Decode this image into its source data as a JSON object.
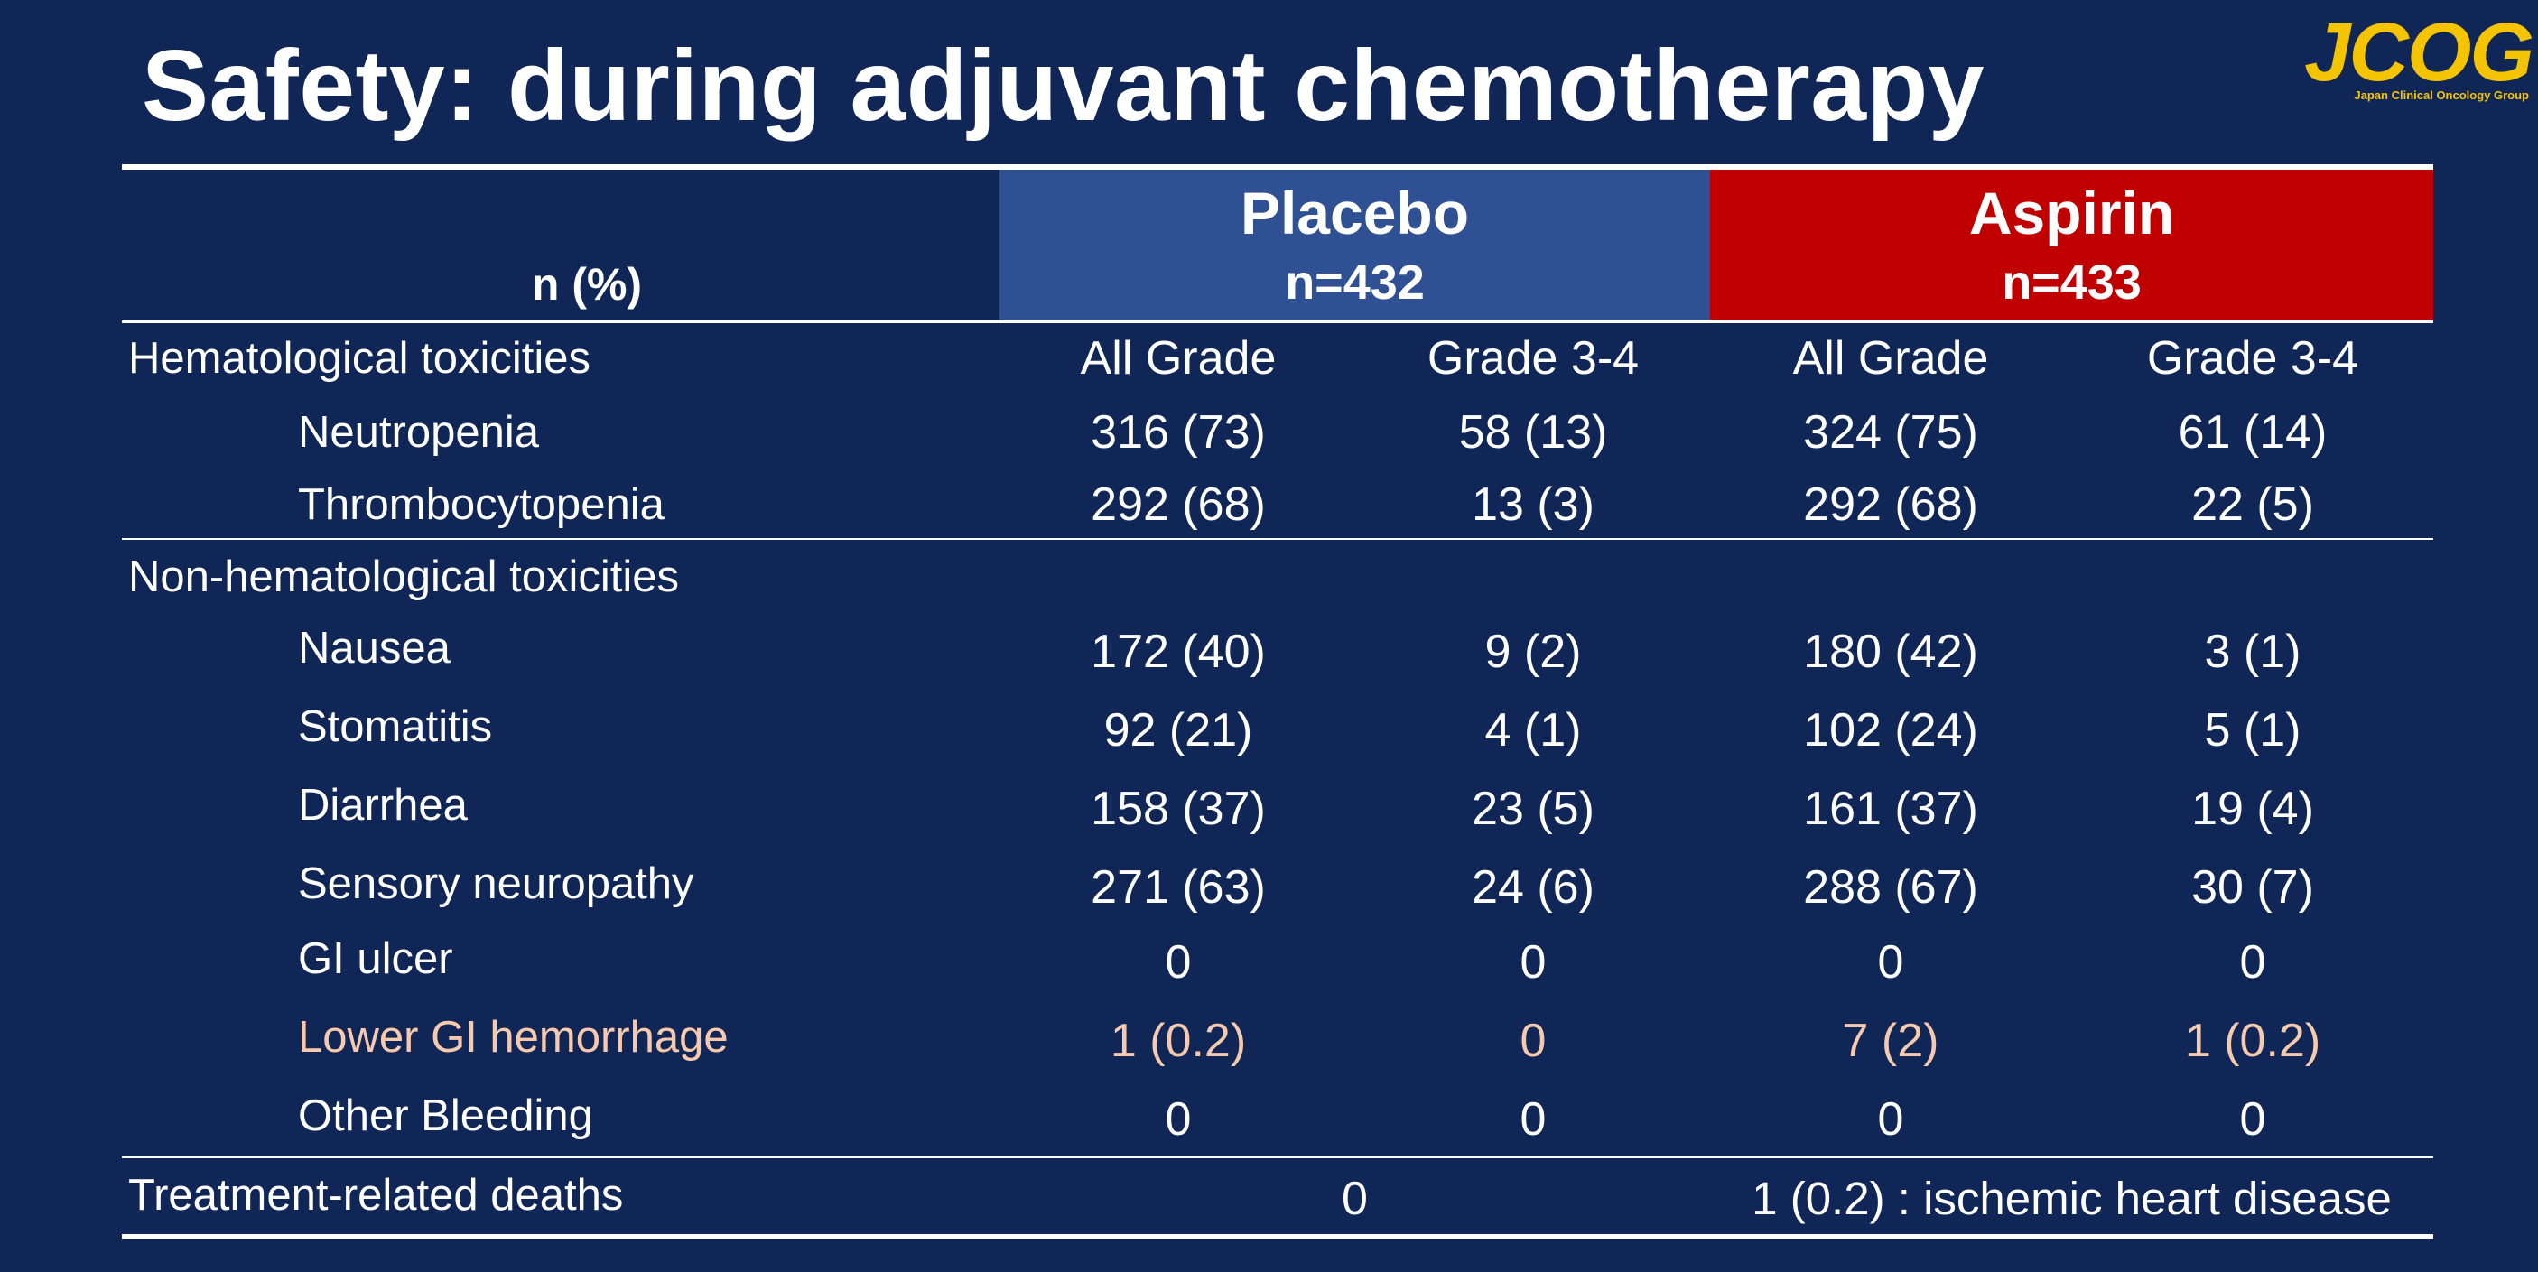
{
  "title": "Safety: during adjuvant chemotherapy",
  "logo": {
    "main": "JCOG",
    "sub": "Japan Clinical Oncology Group",
    "color": "#f5c400"
  },
  "header": {
    "row_label": "n (%)",
    "placebo": {
      "name": "Placebo",
      "n": "n=432",
      "color": "#2f5092"
    },
    "aspirin": {
      "name": "Aspirin",
      "n": "n=433",
      "color": "#c00000"
    }
  },
  "sections": {
    "hematological": {
      "label": "Hematological toxicities",
      "columns": [
        "All Grade",
        "Grade 3-4",
        "All Grade",
        "Grade 3-4"
      ],
      "rows": [
        {
          "label": "Neutropenia",
          "values": [
            "316 (73)",
            "58 (13)",
            "324 (75)",
            "61 (14)"
          ]
        },
        {
          "label": "Thrombocytopenia",
          "values": [
            "292 (68)",
            "13 (3)",
            "292 (68)",
            "22 (5)"
          ]
        }
      ]
    },
    "non_hematological": {
      "label": "Non-hematological toxicities",
      "rows": [
        {
          "label": "Nausea",
          "values": [
            "172 (40)",
            "9 (2)",
            "180 (42)",
            "3 (1)"
          ]
        },
        {
          "label": "Stomatitis",
          "values": [
            "92 (21)",
            "4 (1)",
            "102 (24)",
            "5 (1)"
          ]
        },
        {
          "label": "Diarrhea",
          "values": [
            "158 (37)",
            "23 (5)",
            "161 (37)",
            "19 (4)"
          ]
        },
        {
          "label": "Sensory neuropathy",
          "values": [
            "271 (63)",
            "24 (6)",
            "288 (67)",
            "30 (7)"
          ]
        },
        {
          "label": "GI ulcer",
          "values": [
            "0",
            "0",
            "0",
            "0"
          ]
        },
        {
          "label": "Lower GI hemorrhage",
          "values": [
            "1 (0.2)",
            "0",
            "7 (2)",
            "1 (0.2)"
          ],
          "highlight": true
        },
        {
          "label": "Other Bleeding",
          "values": [
            "0",
            "0",
            "0",
            "0"
          ]
        }
      ]
    },
    "deaths": {
      "label": "Treatment-related deaths",
      "placebo": "0",
      "aspirin": "1 (0.2) : ischemic heart disease"
    }
  },
  "colors": {
    "background": "#0f2656",
    "highlight_text": "#f7c9ad"
  }
}
